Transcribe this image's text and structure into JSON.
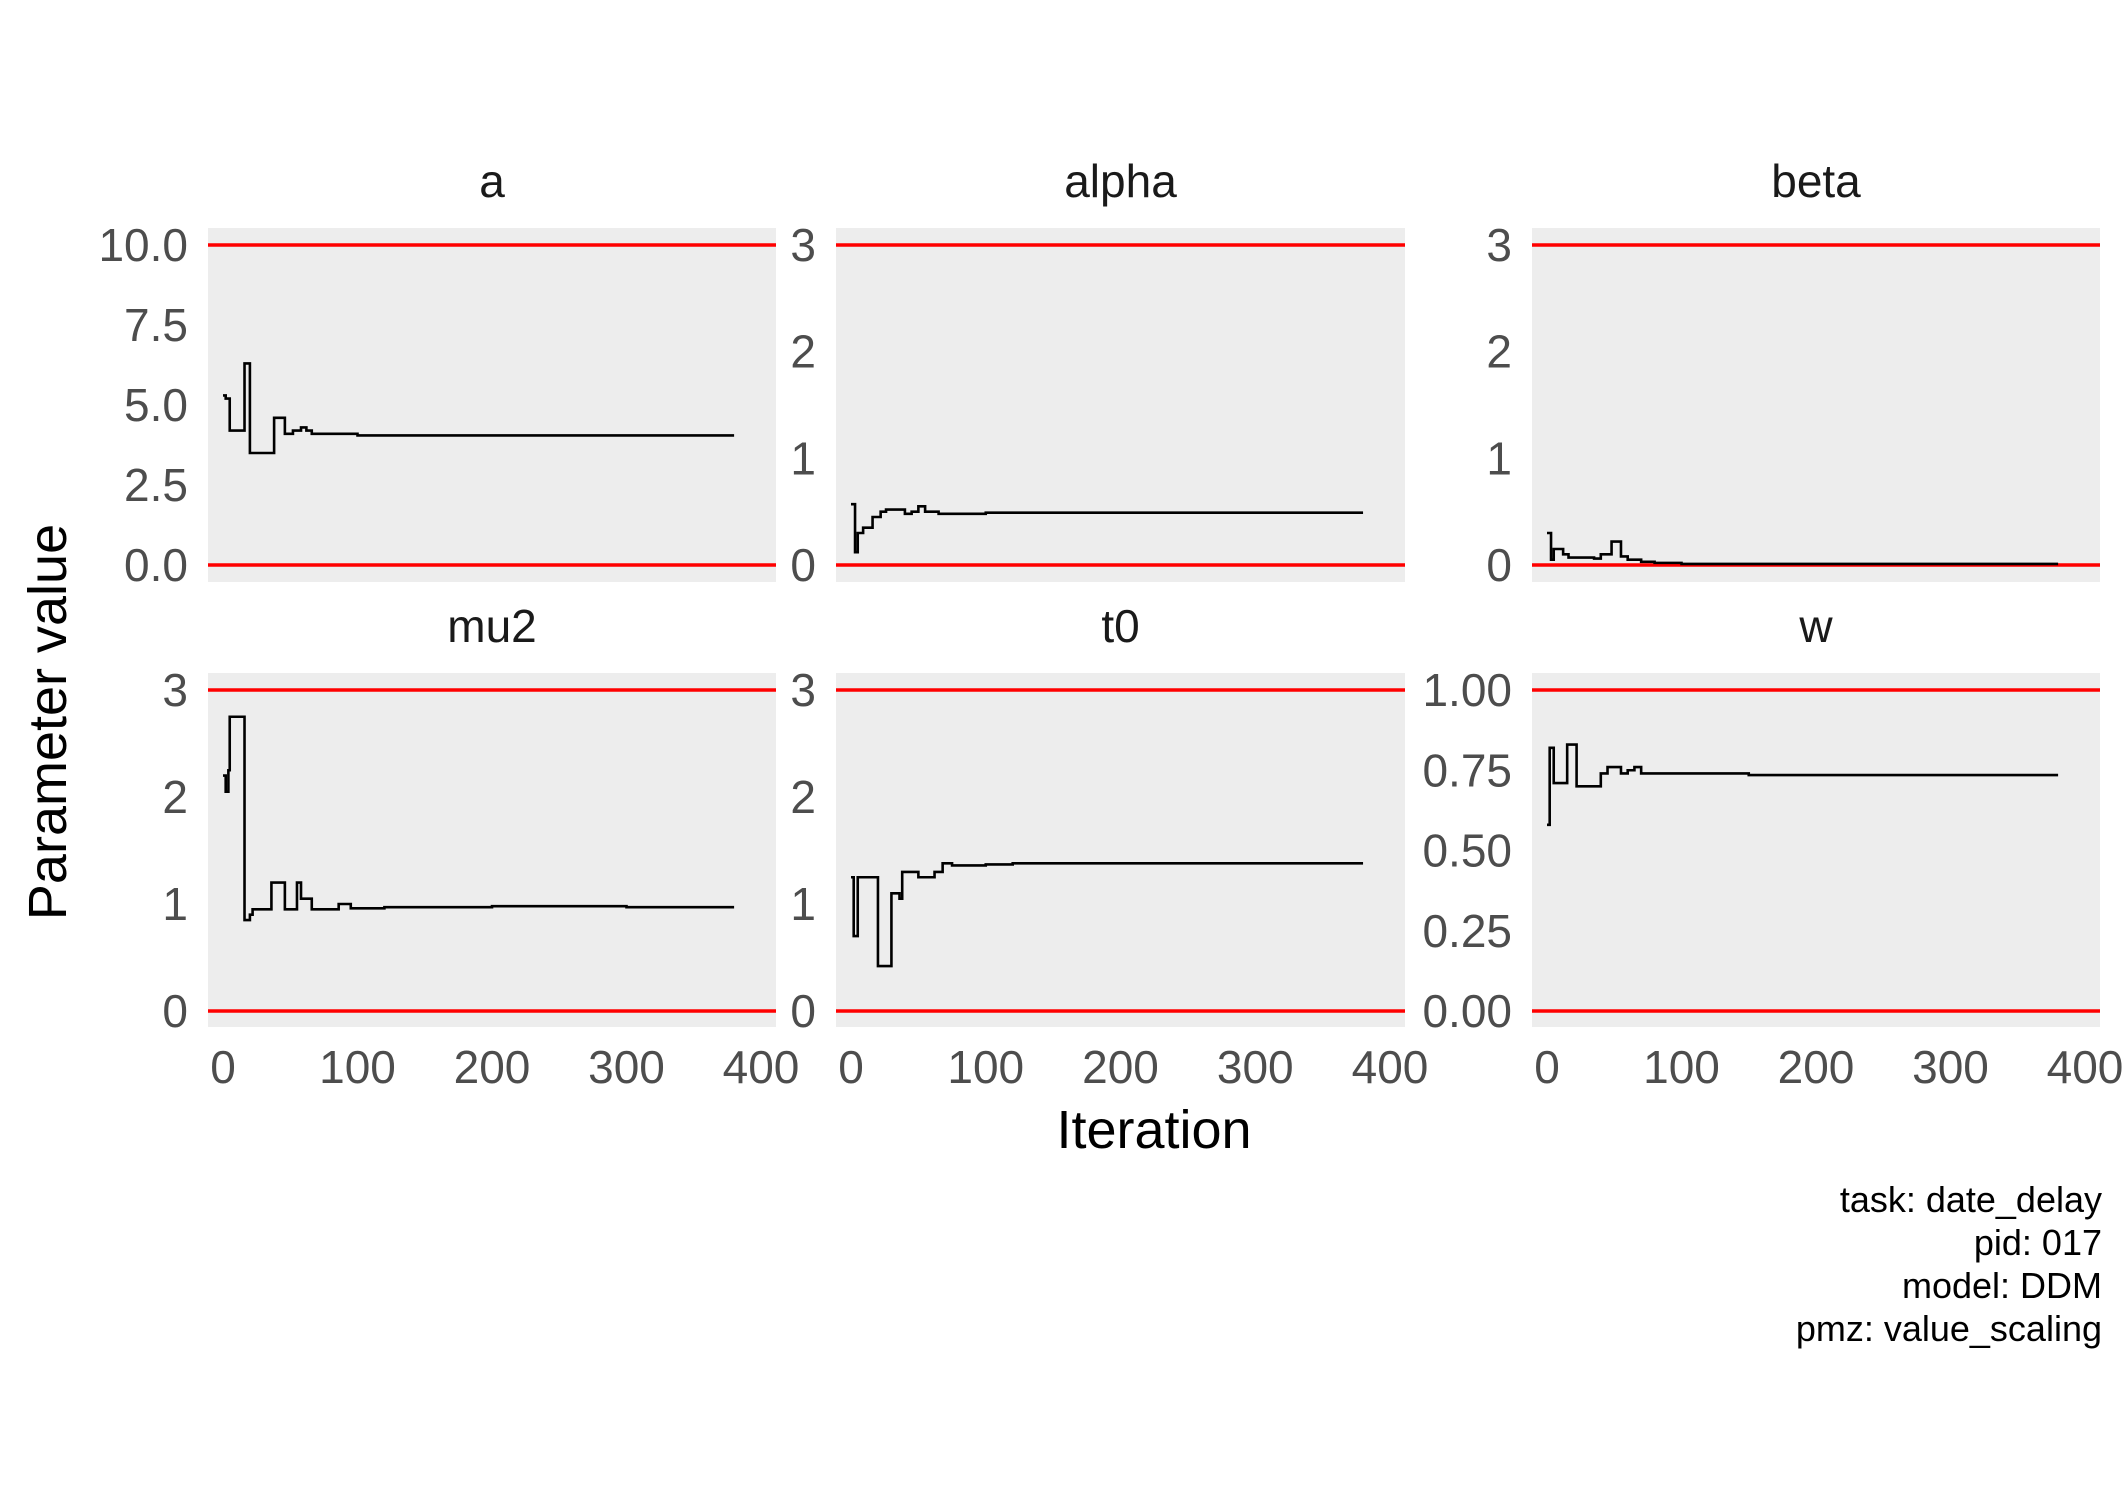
{
  "chart_data": {
    "type": "line",
    "layout": "facet-grid",
    "xlabel": "Iteration",
    "ylabel": "Parameter value",
    "xlim": [
      0,
      400
    ],
    "x_ticks": [
      0,
      100,
      200,
      300,
      400
    ],
    "colors": {
      "panel_bg": "#ededed",
      "bound_line": "#ff0000",
      "trace": "#000000"
    },
    "panels": [
      {
        "title": "a",
        "ylim": [
          0,
          10
        ],
        "y_ticks": [
          "0.0",
          "2.5",
          "5.0",
          "7.5",
          "10.0"
        ],
        "bounds": [
          0,
          10
        ],
        "x": [
          0,
          2,
          5,
          12,
          16,
          20,
          32,
          38,
          46,
          52,
          58,
          62,
          66,
          80,
          100,
          130,
          200,
          300,
          380
        ],
        "y": [
          5.3,
          5.2,
          4.2,
          4.2,
          6.3,
          3.5,
          3.5,
          4.6,
          4.1,
          4.2,
          4.3,
          4.2,
          4.1,
          4.1,
          4.05,
          4.05,
          4.05,
          4.05,
          4.05
        ]
      },
      {
        "title": "alpha",
        "ylim": [
          0,
          3
        ],
        "y_ticks": [
          "0",
          "1",
          "2",
          "3"
        ],
        "bounds": [
          0,
          3
        ],
        "x": [
          0,
          3,
          5,
          9,
          16,
          22,
          26,
          30,
          40,
          45,
          50,
          55,
          65,
          80,
          100,
          200,
          300,
          380
        ],
        "y": [
          0.57,
          0.12,
          0.3,
          0.35,
          0.45,
          0.5,
          0.52,
          0.52,
          0.48,
          0.5,
          0.55,
          0.5,
          0.48,
          0.48,
          0.49,
          0.49,
          0.49,
          0.49
        ]
      },
      {
        "title": "beta",
        "ylim": [
          0,
          3
        ],
        "y_ticks": [
          "0",
          "1",
          "2",
          "3"
        ],
        "bounds": [
          0,
          3
        ],
        "x": [
          0,
          3,
          5,
          12,
          16,
          25,
          35,
          40,
          45,
          48,
          55,
          60,
          70,
          80,
          100,
          150,
          200,
          300,
          380
        ],
        "y": [
          0.3,
          0.05,
          0.15,
          0.1,
          0.07,
          0.07,
          0.06,
          0.1,
          0.1,
          0.22,
          0.08,
          0.05,
          0.03,
          0.02,
          0.01,
          0.01,
          0.01,
          0.01,
          0.01
        ]
      },
      {
        "title": "mu2",
        "ylim": [
          0,
          3
        ],
        "y_ticks": [
          "0",
          "1",
          "2",
          "3"
        ],
        "bounds": [
          0,
          3
        ],
        "x": [
          0,
          2,
          4,
          5,
          16,
          20,
          22,
          36,
          46,
          52,
          55,
          58,
          60,
          66,
          80,
          86,
          95,
          120,
          200,
          300,
          380
        ],
        "y": [
          2.2,
          2.05,
          2.25,
          2.75,
          0.85,
          0.9,
          0.95,
          1.2,
          0.95,
          0.95,
          1.2,
          1.05,
          1.05,
          0.95,
          0.95,
          1.0,
          0.96,
          0.97,
          0.98,
          0.97,
          0.97
        ]
      },
      {
        "title": "t0",
        "ylim": [
          0,
          3
        ],
        "y_ticks": [
          "0",
          "1",
          "2",
          "3"
        ],
        "bounds": [
          0,
          3
        ],
        "x": [
          0,
          2,
          5,
          14,
          20,
          30,
          36,
          38,
          50,
          60,
          62,
          66,
          68,
          75,
          90,
          100,
          120,
          150,
          200,
          300,
          380
        ],
        "y": [
          1.25,
          0.7,
          1.25,
          1.25,
          0.42,
          1.1,
          1.05,
          1.3,
          1.25,
          1.25,
          1.3,
          1.3,
          1.38,
          1.36,
          1.36,
          1.37,
          1.38,
          1.38,
          1.38,
          1.38,
          1.38
        ]
      },
      {
        "title": "w",
        "ylim": [
          0,
          1
        ],
        "y_ticks": [
          "0.00",
          "0.25",
          "0.50",
          "0.75",
          "1.00"
        ],
        "bounds": [
          0,
          1
        ],
        "x": [
          0,
          2,
          5,
          8,
          15,
          22,
          40,
          45,
          55,
          60,
          65,
          70,
          80,
          100,
          150,
          200,
          300,
          380
        ],
        "y": [
          0.58,
          0.82,
          0.71,
          0.71,
          0.83,
          0.7,
          0.74,
          0.76,
          0.74,
          0.75,
          0.76,
          0.74,
          0.74,
          0.74,
          0.735,
          0.735,
          0.735,
          0.735
        ]
      }
    ]
  },
  "caption": {
    "task": "task: date_delay",
    "pid": "pid: 017",
    "model": "model: DDM",
    "pmz": "pmz: value_scaling"
  }
}
